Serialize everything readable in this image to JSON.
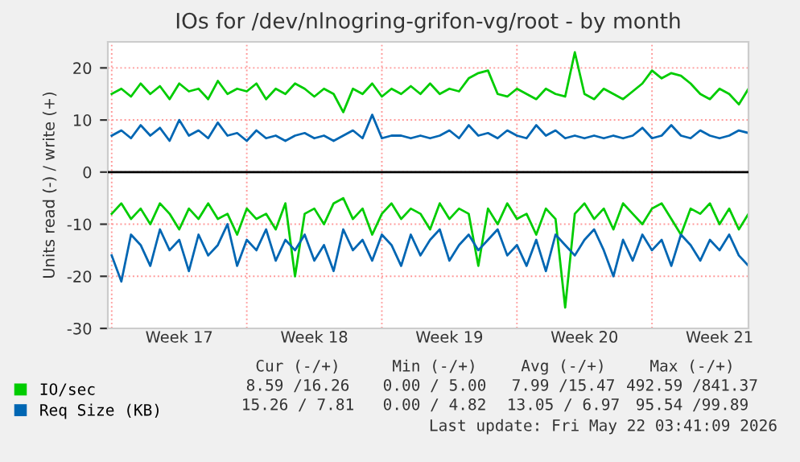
{
  "chart_data": {
    "type": "line",
    "title": "IOs for /dev/nlnogring-grifon-vg/root - by month",
    "ylabel": "Units read (-) / write (+)",
    "categories": [
      null,
      null,
      null,
      null,
      null,
      null,
      null,
      "Week 17",
      null,
      null,
      null,
      null,
      null,
      null,
      null,
      null,
      null,
      null,
      null,
      null,
      null,
      "Week 18",
      null,
      null,
      null,
      null,
      null,
      null,
      null,
      null,
      null,
      null,
      null,
      null,
      null,
      "Week 19",
      null,
      null,
      null,
      null,
      null,
      null,
      null,
      null,
      null,
      null,
      null,
      null,
      null,
      "Week 20",
      null,
      null,
      null,
      null,
      null,
      null,
      null,
      null,
      null,
      null,
      null,
      null,
      null,
      "Week 21",
      null,
      null,
      null
    ],
    "series": [
      {
        "name": "IO/sec",
        "color": "#00cc00",
        "values": [
          15,
          16,
          14.5,
          17,
          15,
          16.5,
          14,
          17,
          15.5,
          16,
          14,
          17.5,
          15,
          16,
          15.5,
          17,
          14,
          16,
          15,
          17,
          16,
          14.5,
          16,
          15,
          11.5,
          16,
          15,
          17,
          14.5,
          16,
          15,
          16.5,
          15,
          17,
          15,
          16,
          15.5,
          18,
          19,
          19.5,
          15,
          14.5,
          16,
          15,
          14,
          16,
          15,
          14.5,
          23,
          15,
          14,
          16,
          15,
          14,
          15.5,
          17,
          19.5,
          18,
          19,
          18.5,
          17,
          15,
          14,
          16,
          15,
          13,
          16
        ]
      },
      {
        "name": "Req Size (KB)",
        "color": "#0066b3",
        "values": [
          7,
          8,
          6.5,
          9,
          7,
          8.5,
          6,
          10,
          7,
          8,
          6.5,
          9.5,
          7,
          7.5,
          6,
          8,
          6.5,
          7,
          6,
          7,
          7.5,
          6.5,
          7,
          6,
          7,
          8,
          6.5,
          11,
          6.5,
          7,
          7,
          6.5,
          7,
          6.5,
          7,
          8,
          6.5,
          9,
          7,
          7.5,
          6.5,
          8,
          7,
          6.5,
          9,
          7,
          8,
          6.5,
          7,
          6.5,
          7,
          6.5,
          7,
          6.5,
          7,
          8.5,
          6.5,
          7,
          9,
          7,
          6.5,
          8,
          7,
          6.5,
          7,
          8,
          7.5
        ]
      },
      {
        "color": "#00cc00",
        "values": [
          -8,
          -6,
          -9,
          -7,
          -10,
          -6,
          -8,
          -11,
          -7,
          -9,
          -6,
          -9,
          -8,
          -12,
          -7,
          -9,
          -8,
          -11,
          -6,
          -20,
          -8,
          -7,
          -10,
          -6,
          -5,
          -9,
          -7,
          -12,
          -8,
          -6,
          -9,
          -7,
          -8,
          -11,
          -6,
          -9,
          -7,
          -8,
          -18,
          -7,
          -10,
          -6,
          -9,
          -8,
          -12,
          -7,
          -9,
          -26,
          -8,
          -6,
          -9,
          -7,
          -11,
          -6,
          -8,
          -10,
          -7,
          -6,
          -9,
          -12,
          -7,
          -8,
          -6,
          -10,
          -7,
          -11,
          -8
        ]
      },
      {
        "color": "#0066b3",
        "values": [
          -16,
          -21,
          -12,
          -14,
          -18,
          -11,
          -15,
          -13,
          -19,
          -12,
          -16,
          -14,
          -10,
          -18,
          -13,
          -15,
          -11,
          -17,
          -13,
          -15,
          -12,
          -17,
          -14,
          -19,
          -11,
          -15,
          -13,
          -17,
          -12,
          -14,
          -18,
          -12,
          -16,
          -13,
          -11,
          -17,
          -14,
          -12,
          -15,
          -13,
          -11,
          -16,
          -14,
          -18,
          -13,
          -19,
          -12,
          -14,
          -16,
          -13,
          -11,
          -15,
          -20,
          -13,
          -17,
          -12,
          -15,
          -13,
          -18,
          -12,
          -14,
          -17,
          -13,
          -15,
          -12,
          -16,
          -18
        ]
      }
    ],
    "ylim": [
      -30,
      25
    ],
    "yticks": [
      -30,
      -20,
      -10,
      0,
      10,
      20
    ],
    "ref_lines": [
      {
        "axis": "y",
        "value": 0,
        "color": "#000000"
      }
    ],
    "grid": true,
    "legend": "bottom left",
    "annotations": [
      "Cur (-/+)",
      "Min (-/+)",
      "Avg (-/+)",
      "Max (-/+)",
      "8.59 /16.26",
      "0.00 / 5.00",
      "7.99 /15.47",
      "492.59 /841.37",
      "15.26 / 7.81",
      "0.00 / 4.82",
      "13.05 / 6.97",
      "95.54 /99.89",
      "Last update: Fri May 22 03:41:09 2026"
    ]
  }
}
